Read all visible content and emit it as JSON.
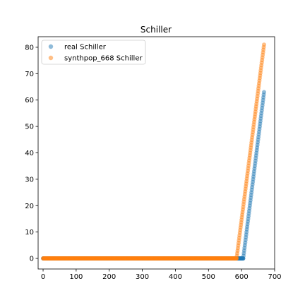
{
  "chart_data": {
    "type": "scatter",
    "title": "Schiller",
    "xlabel": "",
    "ylabel": "",
    "xlim": [
      -15,
      700
    ],
    "ylim": [
      -4,
      84
    ],
    "xticks": [
      0,
      100,
      200,
      300,
      400,
      500,
      600,
      700
    ],
    "yticks": [
      0,
      10,
      20,
      30,
      40,
      50,
      60,
      70,
      80
    ],
    "grid": false,
    "legend_position": "top-left",
    "series": [
      {
        "name": "real Schiller",
        "color": "#1f77b4",
        "alpha": 0.5,
        "segments": [
          {
            "x_start": 0,
            "x_end": 598,
            "y_start": 0,
            "y_end": 0
          },
          {
            "x_start": 598,
            "x_end": 605,
            "y_start": 0,
            "y_end": 0
          },
          {
            "x_start": 605,
            "x_end": 668,
            "y_start": 0,
            "y_end": 63
          }
        ]
      },
      {
        "name": "synthpop_668 Schiller",
        "color": "#ff7f0e",
        "alpha": 0.5,
        "segments": [
          {
            "x_start": 0,
            "x_end": 585,
            "y_start": 0,
            "y_end": 0
          },
          {
            "x_start": 585,
            "x_end": 668,
            "y_start": 0,
            "y_end": 81
          }
        ]
      }
    ]
  }
}
